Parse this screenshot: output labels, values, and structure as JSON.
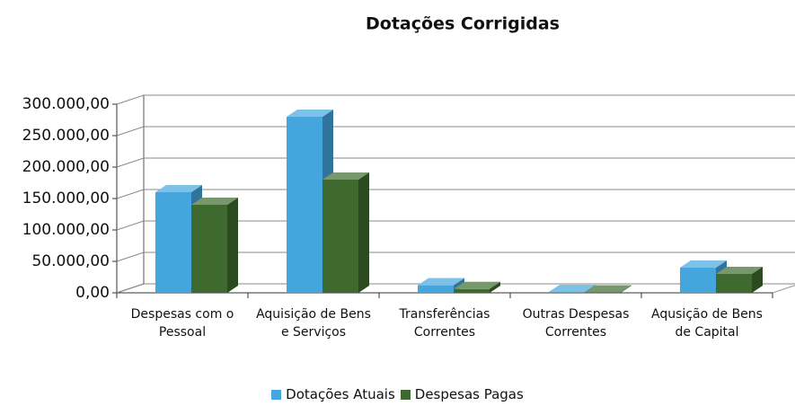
{
  "chart_data": {
    "type": "bar3d",
    "title": "Dotações Corrigidas",
    "categories": [
      "Despesas com o Pessoal",
      "Aquisição de Bens e Serviços",
      "Transferências Correntes",
      "Outras Despesas Correntes",
      "Aqusição de Bens de Capital"
    ],
    "series": [
      {
        "name": "Dotações Atuais",
        "color": "#45a6de",
        "values": [
          160000,
          280000,
          12000,
          1500,
          40000
        ]
      },
      {
        "name": "Despesas Pagas",
        "color": "#3f6a2f",
        "values": [
          140000,
          180000,
          6000,
          800,
          30000
        ]
      }
    ],
    "ylim": [
      0,
      300000
    ],
    "yticks": [
      {
        "value": 0,
        "label": "0,00"
      },
      {
        "value": 50000,
        "label": "50.000,00"
      },
      {
        "value": 100000,
        "label": "100.000,00"
      },
      {
        "value": 150000,
        "label": "150.000,00"
      },
      {
        "value": 200000,
        "label": "200.000,00"
      },
      {
        "value": 250000,
        "label": "250.000,00"
      },
      {
        "value": 300000,
        "label": "300.000,00"
      }
    ],
    "grid": true,
    "legend": "bottom"
  }
}
